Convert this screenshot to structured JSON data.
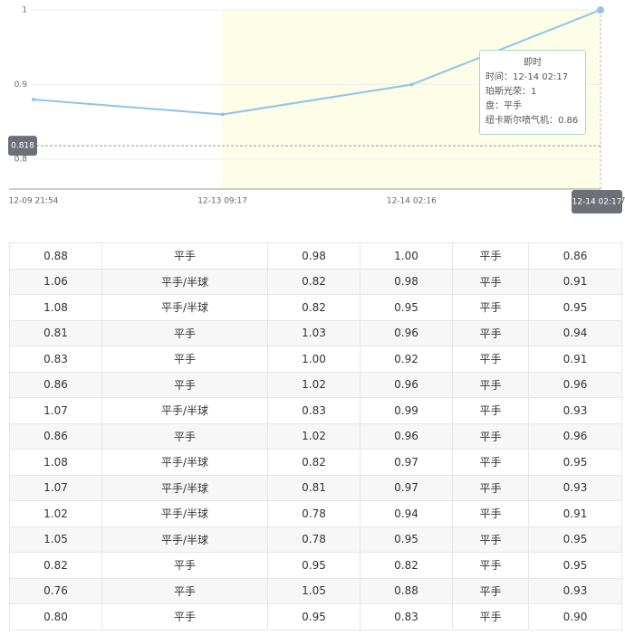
{
  "chart_data": {
    "type": "line",
    "categories": [
      "12-09 21:54",
      "12-13 09:17",
      "12-14 02:16",
      "12-14 02:17"
    ],
    "values": [
      0.88,
      0.86,
      0.9,
      1.0
    ],
    "color": "#8ec4ea",
    "ylim": [
      0.76,
      1.0
    ],
    "yticks": [
      0.8,
      0.9,
      1
    ],
    "grid": true,
    "crosshair_value": 0.818,
    "tooltip": {
      "title": "即时",
      "lines": [
        "时间：12-14 02:17",
        "珀斯光荣：1",
        "盘：平手",
        "纽卡斯尔喷气机：0.86"
      ]
    }
  },
  "table": {
    "rows": [
      [
        "0.88",
        "平手",
        "0.98",
        "1.00",
        "平手",
        "0.86"
      ],
      [
        "1.06",
        "平手/半球",
        "0.82",
        "0.98",
        "平手",
        "0.91"
      ],
      [
        "1.08",
        "平手/半球",
        "0.82",
        "0.95",
        "平手",
        "0.95"
      ],
      [
        "0.81",
        "平手",
        "1.03",
        "0.96",
        "平手",
        "0.94"
      ],
      [
        "0.83",
        "平手",
        "1.00",
        "0.92",
        "平手",
        "0.91"
      ],
      [
        "0.86",
        "平手",
        "1.02",
        "0.96",
        "平手",
        "0.96"
      ],
      [
        "1.07",
        "平手/半球",
        "0.83",
        "0.99",
        "平手",
        "0.93"
      ],
      [
        "0.86",
        "平手",
        "1.02",
        "0.96",
        "平手",
        "0.96"
      ],
      [
        "1.08",
        "平手/半球",
        "0.82",
        "0.97",
        "平手",
        "0.95"
      ],
      [
        "1.07",
        "平手/半球",
        "0.81",
        "0.97",
        "平手",
        "0.93"
      ],
      [
        "1.02",
        "平手/半球",
        "0.78",
        "0.94",
        "平手",
        "0.91"
      ],
      [
        "1.05",
        "平手/半球",
        "0.78",
        "0.95",
        "平手",
        "0.95"
      ],
      [
        "0.82",
        "平手",
        "0.95",
        "0.82",
        "平手",
        "0.95"
      ],
      [
        "0.76",
        "平手",
        "1.05",
        "0.88",
        "平手",
        "0.93"
      ],
      [
        "0.80",
        "平手",
        "0.95",
        "0.83",
        "平手",
        "0.90"
      ]
    ]
  }
}
